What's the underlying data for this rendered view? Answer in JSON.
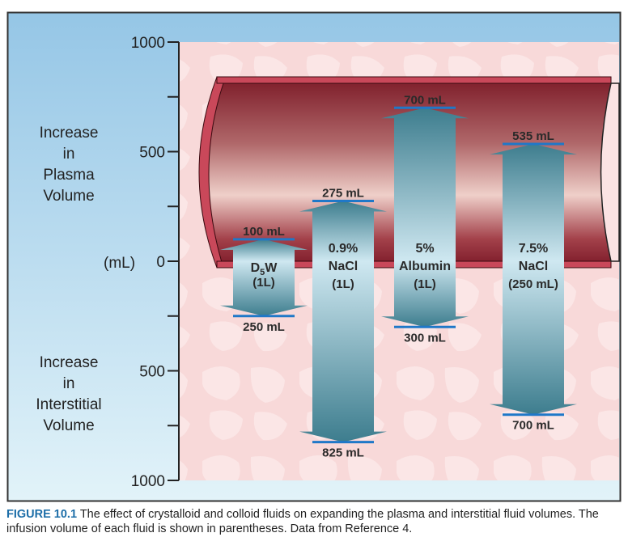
{
  "figure": {
    "caption_label": "FIGURE 10.1",
    "caption_text": "The effect of crystalloid and colloid fluids on expanding the plasma and interstitial fluid volumes. The infusion volume of each fluid is shown in parentheses. Data from Reference 4."
  },
  "colors": {
    "panel_bg_top": "#9ccbe8",
    "panel_bg_bottom": "#dff1f8",
    "tissue_bg": "#f9dada",
    "vessel_dark": "#7e1f2b",
    "vessel_light": "#e9c7c2",
    "vessel_rim": "#c9485a",
    "arrow_dark": "#3f7f8f",
    "arrow_light": "#cde7f0",
    "marker_line": "#1f78c8",
    "caption_label": "#1d6ea8"
  },
  "chart_data": {
    "type": "bar",
    "title": "",
    "ylabel": "(mL)",
    "upper_axis_label": [
      "Increase",
      "in",
      "Plasma",
      "Volume"
    ],
    "lower_axis_label": [
      "Increase",
      "in",
      "Interstitial",
      "Volume"
    ],
    "yticks_upper": [
      "1000",
      "500",
      "0"
    ],
    "yticks_lower": [
      "500",
      "1000"
    ],
    "ylim": [
      -1000,
      1000
    ],
    "categories": [
      {
        "line1": "D",
        "sub": "5",
        "line1_rest": "W",
        "line2": "(1L)"
      },
      {
        "line1": "0.9%",
        "line2": "NaCl",
        "line3": "(1L)"
      },
      {
        "line1": "5%",
        "line2": "Albumin",
        "line3": "(1L)"
      },
      {
        "line1": "7.5%",
        "line2": "NaCl",
        "line3": "(250 mL)"
      }
    ],
    "series": [
      {
        "name": "Increase in Plasma Volume",
        "values": [
          100,
          275,
          700,
          535
        ],
        "labels": [
          "100 mL",
          "275 mL",
          "700 mL",
          "535 mL"
        ]
      },
      {
        "name": "Increase in Interstitial Volume",
        "values": [
          250,
          825,
          300,
          700
        ],
        "labels": [
          "250 mL",
          "825 mL",
          "300 mL",
          "700 mL"
        ]
      }
    ]
  }
}
